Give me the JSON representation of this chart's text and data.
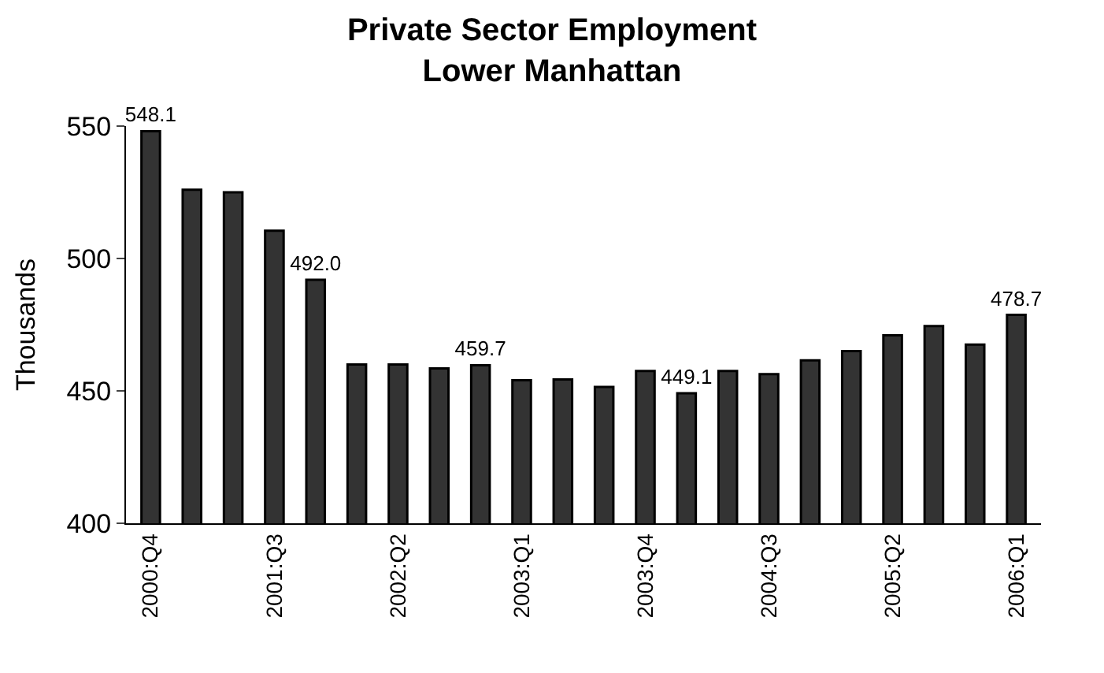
{
  "chart_data": {
    "type": "bar",
    "title": "Private Sector Employment\nLower Manhattan",
    "ylabel": "Thousands",
    "categories": [
      "2000:Q4",
      null,
      null,
      "2001:Q3",
      null,
      null,
      "2002:Q2",
      null,
      null,
      "2003:Q1",
      null,
      null,
      "2003:Q4",
      null,
      null,
      "2004:Q3",
      null,
      null,
      "2005:Q2",
      null,
      null,
      "2006:Q1"
    ],
    "values": [
      548.1,
      526,
      525,
      510.5,
      492.0,
      460,
      460,
      458.5,
      459.7,
      454,
      454.3,
      451.5,
      457.5,
      449.1,
      457.5,
      456.3,
      461.5,
      465,
      471,
      474.5,
      467.5,
      478.7
    ],
    "value_labels": [
      "548.1",
      null,
      null,
      null,
      "492.0",
      null,
      null,
      null,
      "459.7",
      null,
      null,
      null,
      null,
      "449.1",
      null,
      null,
      null,
      null,
      null,
      null,
      null,
      "478.7"
    ],
    "color": "#333333",
    "ylim": [
      400,
      550
    ],
    "yticks": [
      400,
      450,
      500,
      550
    ]
  }
}
